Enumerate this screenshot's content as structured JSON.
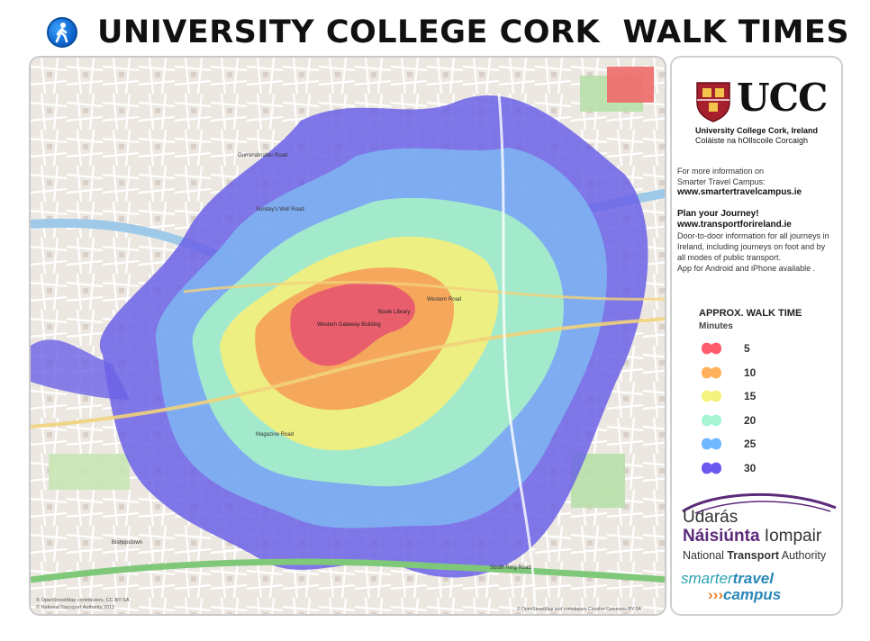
{
  "header": {
    "title": "UNIVERSITY COLLEGE CORK  WALK TIMES",
    "icon": "pedestrian-icon"
  },
  "map": {
    "campus_labels": [
      "Boole Library",
      "Western Gateway Building"
    ],
    "street_labels": [
      "South Ring Road",
      "Sunday's Well Road",
      "Gurranabraher Road",
      "Western Road",
      "Magazine Road",
      "Bishopstown"
    ],
    "attribution_left": "© OpenStreetMap contributors, CC-BY-SA",
    "attribution_left2": "© National Transport Authority 2013",
    "attribution_right": "© OpenStreetMap and contributors Creative Commons-BY-SA",
    "isochrone_colors": {
      "5": "#e85a6e",
      "10": "#f5a35a",
      "15": "#f1ef7d",
      "20": "#a7f1c9",
      "25": "#7fb6f2",
      "30": "#6b62e6"
    }
  },
  "panel": {
    "logo_text": "UCC",
    "logo_sub1": "University College Cork, Ireland",
    "logo_sub2": "Coláiste na hOllscoile Corcaigh",
    "info1": "For more information on",
    "info2": "Smarter Travel Campus:",
    "info_url": "www.smartertravelcampus.ie",
    "plan_title": "Plan your Journey!",
    "plan_url": "www.transportforireland.ie",
    "plan_desc1": "Door-to-door information for all journeys in",
    "plan_desc2": "Ireland, including journeys on foot and by",
    "plan_desc3": "all modes of public transport.",
    "plan_desc4": "App for Android and iPhone available .",
    "legend": {
      "title": "APPROX. WALK TIME",
      "subtitle": "Minutes",
      "items": [
        {
          "label": "5",
          "color": "#ff5c6c"
        },
        {
          "label": "10",
          "color": "#ffb25b"
        },
        {
          "label": "15",
          "color": "#f4f37e"
        },
        {
          "label": "20",
          "color": "#a5f5d2"
        },
        {
          "label": "25",
          "color": "#6fb7ff"
        },
        {
          "label": "30",
          "color": "#6a58f0"
        }
      ]
    },
    "nta_line1": "Údarás",
    "nta_line2a": "Náisiúnta",
    "nta_line2b": " Iompair",
    "nta_line3a": "National ",
    "nta_line3b": "Transport",
    "nta_line3c": " Authority",
    "stc_line1a": "smarter",
    "stc_line1b": "travel",
    "stc_arrows": "›››",
    "stc_line2": "campus"
  }
}
